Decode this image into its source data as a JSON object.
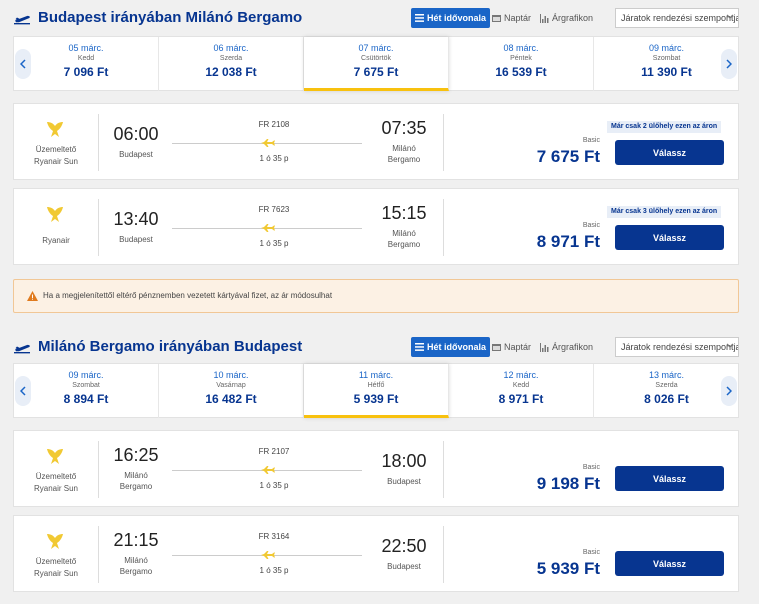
{
  "outbound": {
    "title": "Budapest irányában Milánó Bergamo",
    "view_week": "Hét idővonala",
    "view_calendar": "Naptár",
    "view_chart": "Árgrafikon",
    "sort_label": "Járatok rendezési szempontja:",
    "dates": [
      {
        "date": "05 márc.",
        "day": "Kedd",
        "price": "7 096 Ft"
      },
      {
        "date": "06 márc.",
        "day": "Szerda",
        "price": "12 038 Ft"
      },
      {
        "date": "07 márc.",
        "day": "Csütörtök",
        "price": "7 675 Ft",
        "selected": true
      },
      {
        "date": "08 márc.",
        "day": "Péntek",
        "price": "16 539 Ft"
      },
      {
        "date": "09 márc.",
        "day": "Szombat",
        "price": "11 390 Ft"
      }
    ],
    "flights": [
      {
        "airline_line1": "Üzemeltető",
        "airline_line2": "Ryanair Sun",
        "dep_time": "06:00",
        "dep_line1": "Budapest",
        "dep_line2": "",
        "flight_no": "FR 2108",
        "duration": "1 ó 35 p",
        "arr_time": "07:35",
        "arr_line1": "Milánó",
        "arr_line2": "Bergamo",
        "seats_note": "Már csak 2 ülőhely ezen az áron",
        "fare": "Basic",
        "price": "7 675 Ft",
        "button": "Válassz"
      },
      {
        "airline_line1": "Ryanair",
        "airline_line2": "",
        "dep_time": "13:40",
        "dep_line1": "Budapest",
        "dep_line2": "",
        "flight_no": "FR 7623",
        "duration": "1 ó 35 p",
        "arr_time": "15:15",
        "arr_line1": "Milánó",
        "arr_line2": "Bergamo",
        "seats_note": "Már csak 3 ülőhely ezen az áron",
        "fare": "Basic",
        "price": "8 971 Ft",
        "button": "Válassz"
      }
    ]
  },
  "notice": "Ha a megjelenítettől eltérő pénznemben vezetett kártyával fizet, az ár módosulhat",
  "inbound": {
    "title": "Milánó Bergamo irányában Budapest",
    "view_week": "Hét idővonala",
    "view_calendar": "Naptár",
    "view_chart": "Árgrafikon",
    "sort_label": "Járatok rendezési szempontja:",
    "dates": [
      {
        "date": "09 márc.",
        "day": "Szombat",
        "price": "8 894 Ft"
      },
      {
        "date": "10 márc.",
        "day": "Vasárnap",
        "price": "16 482 Ft"
      },
      {
        "date": "11 márc.",
        "day": "Hétfő",
        "price": "5 939 Ft",
        "selected": true
      },
      {
        "date": "12 márc.",
        "day": "Kedd",
        "price": "8 971 Ft"
      },
      {
        "date": "13 márc.",
        "day": "Szerda",
        "price": "8 026 Ft"
      }
    ],
    "flights": [
      {
        "airline_line1": "Üzemeltető",
        "airline_line2": "Ryanair Sun",
        "dep_time": "16:25",
        "dep_line1": "Milánó",
        "dep_line2": "Bergamo",
        "flight_no": "FR 2107",
        "duration": "1 ó 35 p",
        "arr_time": "18:00",
        "arr_line1": "Budapest",
        "arr_line2": "",
        "fare": "Basic",
        "price": "9 198 Ft",
        "button": "Válassz"
      },
      {
        "airline_line1": "Üzemeltető",
        "airline_line2": "Ryanair Sun",
        "dep_time": "21:15",
        "dep_line1": "Milánó",
        "dep_line2": "Bergamo",
        "flight_no": "FR 3164",
        "duration": "1 ó 35 p",
        "arr_time": "22:50",
        "arr_line1": "Budapest",
        "arr_line2": "",
        "fare": "Basic",
        "price": "5 939 Ft",
        "button": "Válassz"
      }
    ]
  },
  "colors": {
    "brand": "#073590",
    "accent": "#1a65c7",
    "ryanair_yellow": "#f1c933",
    "notice_bg": "#fcf1e4"
  },
  "icons": [
    "plane-icon",
    "list-icon",
    "calendar-icon",
    "bar-chart-icon",
    "chevron-down-icon",
    "chevron-left-icon",
    "chevron-right-icon",
    "ryanair-logo-icon",
    "warning-icon"
  ]
}
